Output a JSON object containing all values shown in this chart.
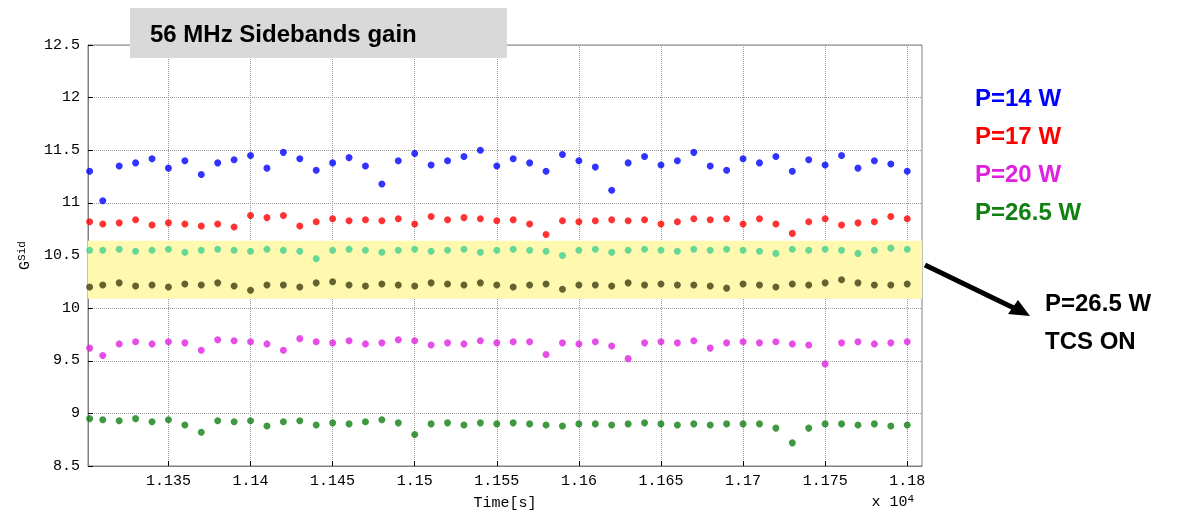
{
  "chart_data": {
    "type": "scatter",
    "title": "56 MHz Sidebands gain",
    "xlabel": "Time[s]",
    "ylabel": "G$^{Sid}$",
    "annotations": [
      "x 10$^{4}$",
      "P=26.5 W",
      "TCS ON"
    ],
    "x": [
      1.1302,
      1.131,
      1.132,
      1.133,
      1.134,
      1.135,
      1.136,
      1.137,
      1.138,
      1.139,
      1.14,
      1.141,
      1.142,
      1.143,
      1.144,
      1.145,
      1.146,
      1.147,
      1.148,
      1.149,
      1.15,
      1.151,
      1.152,
      1.153,
      1.154,
      1.155,
      1.156,
      1.157,
      1.158,
      1.159,
      1.16,
      1.161,
      1.162,
      1.163,
      1.164,
      1.165,
      1.166,
      1.167,
      1.168,
      1.169,
      1.17,
      1.171,
      1.172,
      1.173,
      1.174,
      1.175,
      1.176,
      1.177,
      1.178,
      1.179,
      1.18
    ],
    "series": [
      {
        "name": "P=14 W",
        "color": "#0000ff",
        "values": [
          11.3,
          11.02,
          11.35,
          11.38,
          11.42,
          11.33,
          11.4,
          11.27,
          11.38,
          11.41,
          11.45,
          11.33,
          11.48,
          11.42,
          11.31,
          11.38,
          11.43,
          11.35,
          11.18,
          11.4,
          11.47,
          11.36,
          11.4,
          11.44,
          11.5,
          11.35,
          11.42,
          11.38,
          11.3,
          11.46,
          11.4,
          11.34,
          11.12,
          11.38,
          11.44,
          11.36,
          11.4,
          11.48,
          11.35,
          11.31,
          11.42,
          11.38,
          11.44,
          11.3,
          11.41,
          11.36,
          11.45,
          11.33,
          11.4,
          11.37,
          11.3
        ]
      },
      {
        "name": "P=17 W",
        "color": "#ff0000",
        "values": [
          10.82,
          10.8,
          10.81,
          10.84,
          10.79,
          10.81,
          10.8,
          10.78,
          10.8,
          10.77,
          10.88,
          10.86,
          10.88,
          10.78,
          10.82,
          10.85,
          10.83,
          10.84,
          10.83,
          10.85,
          10.8,
          10.87,
          10.84,
          10.86,
          10.85,
          10.83,
          10.84,
          10.8,
          10.7,
          10.83,
          10.82,
          10.83,
          10.84,
          10.83,
          10.84,
          10.8,
          10.82,
          10.85,
          10.84,
          10.85,
          10.8,
          10.85,
          10.8,
          10.71,
          10.82,
          10.85,
          10.79,
          10.81,
          10.82,
          10.87,
          10.85
        ]
      },
      {
        "color": "#40d090",
        "values": [
          10.55,
          10.55,
          10.56,
          10.54,
          10.55,
          10.56,
          10.53,
          10.55,
          10.56,
          10.55,
          10.54,
          10.56,
          10.55,
          10.54,
          10.47,
          10.55,
          10.56,
          10.55,
          10.53,
          10.55,
          10.56,
          10.54,
          10.55,
          10.56,
          10.53,
          10.55,
          10.56,
          10.55,
          10.54,
          10.5,
          10.55,
          10.56,
          10.53,
          10.55,
          10.56,
          10.55,
          10.54,
          10.56,
          10.55,
          10.56,
          10.55,
          10.54,
          10.52,
          10.56,
          10.55,
          10.56,
          10.55,
          10.52,
          10.55,
          10.57,
          10.56
        ]
      },
      {
        "color": "#3d3d10",
        "values": [
          10.2,
          10.22,
          10.24,
          10.21,
          10.22,
          10.2,
          10.23,
          10.22,
          10.24,
          10.21,
          10.17,
          10.22,
          10.22,
          10.2,
          10.24,
          10.25,
          10.22,
          10.21,
          10.23,
          10.22,
          10.21,
          10.24,
          10.23,
          10.22,
          10.24,
          10.22,
          10.2,
          10.22,
          10.23,
          10.18,
          10.22,
          10.22,
          10.21,
          10.24,
          10.22,
          10.23,
          10.22,
          10.22,
          10.21,
          10.19,
          10.23,
          10.22,
          10.2,
          10.23,
          10.22,
          10.24,
          10.27,
          10.24,
          10.22,
          10.22,
          10.23
        ]
      },
      {
        "name": "P=20 W",
        "color": "#e020e0",
        "values": [
          9.62,
          9.55,
          9.66,
          9.68,
          9.66,
          9.68,
          9.67,
          9.6,
          9.7,
          9.69,
          9.68,
          9.66,
          9.6,
          9.71,
          9.68,
          9.67,
          9.69,
          9.66,
          9.67,
          9.7,
          9.69,
          9.65,
          9.67,
          9.66,
          9.69,
          9.67,
          9.68,
          9.68,
          9.56,
          9.67,
          9.66,
          9.68,
          9.64,
          9.52,
          9.67,
          9.68,
          9.67,
          9.69,
          9.62,
          9.67,
          9.68,
          9.67,
          9.68,
          9.66,
          9.65,
          9.47,
          9.67,
          9.68,
          9.66,
          9.67,
          9.68
        ]
      },
      {
        "name": "P=26.5 W",
        "color": "#108010",
        "values": [
          8.95,
          8.94,
          8.93,
          8.95,
          8.92,
          8.94,
          8.89,
          8.82,
          8.93,
          8.92,
          8.93,
          8.88,
          8.92,
          8.93,
          8.89,
          8.91,
          8.9,
          8.92,
          8.94,
          8.91,
          8.8,
          8.9,
          8.91,
          8.89,
          8.91,
          8.9,
          8.91,
          8.9,
          8.89,
          8.88,
          8.9,
          8.9,
          8.89,
          8.9,
          8.91,
          8.9,
          8.89,
          8.9,
          8.89,
          8.9,
          8.9,
          8.9,
          8.86,
          8.72,
          8.86,
          8.9,
          8.9,
          8.89,
          8.9,
          8.88,
          8.89
        ]
      }
    ],
    "xlim": [
      1.1301,
      1.1809
    ],
    "xticks": [
      1.135,
      1.14,
      1.145,
      1.15,
      1.155,
      1.16,
      1.165,
      1.17,
      1.175,
      1.18
    ],
    "ylim": [
      8.5,
      12.5
    ],
    "yticks": [
      8.5,
      9,
      9.5,
      10,
      10.5,
      11,
      11.5,
      12,
      12.5
    ],
    "bands": [
      {
        "axis": "y",
        "from": 10.09,
        "to": 10.64,
        "color": "#fff9b0"
      }
    ],
    "grid": true,
    "legend": "right",
    "marker": "circle"
  }
}
